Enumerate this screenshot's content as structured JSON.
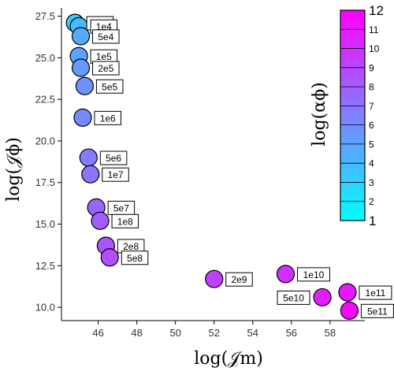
{
  "chart_data": {
    "type": "scatter",
    "xlabel": "log(𝒥m)",
    "ylabel": "log(𝒥ϕ)",
    "xlim": [
      44.1,
      59.8
    ],
    "ylim": [
      9.2,
      28.0
    ],
    "x_ticks": [
      "46",
      "48",
      "50",
      "52",
      "54",
      "56",
      "58"
    ],
    "x_tick_values": [
      46,
      48,
      50,
      52,
      54,
      56,
      58
    ],
    "y_ticks": [
      "10.0",
      "12.5",
      "15.0",
      "17.5",
      "20.0",
      "22.5",
      "25.0",
      "27.5"
    ],
    "y_tick_values": [
      10.0,
      12.5,
      15.0,
      17.5,
      20.0,
      22.5,
      25.0,
      27.5
    ],
    "colorbar": {
      "label": "log(αϕ)",
      "range": [
        1,
        12
      ],
      "ticks": [
        "1",
        "2",
        "3",
        "4",
        "5",
        "6",
        "7",
        "8",
        "9",
        "10",
        "11",
        "12"
      ],
      "tick_values": [
        1,
        2,
        3,
        4,
        5,
        6,
        7,
        8,
        9,
        10,
        11,
        12
      ],
      "colormap": [
        "#00ffff",
        "#ff00ff"
      ]
    },
    "points": [
      {
        "label": "1e3",
        "x": 44.8,
        "y": 27.1,
        "c": 3.0,
        "label_side": "right"
      },
      {
        "label": "1e4",
        "x": 45.0,
        "y": 26.9,
        "c": 4.0,
        "label_side": "right"
      },
      {
        "label": "5e4",
        "x": 45.1,
        "y": 26.3,
        "c": 4.7,
        "label_side": "right"
      },
      {
        "label": "1e5",
        "x": 45.0,
        "y": 25.1,
        "c": 5.0,
        "label_side": "right"
      },
      {
        "label": "2e5",
        "x": 45.1,
        "y": 24.4,
        "c": 5.3,
        "label_side": "right"
      },
      {
        "label": "5e5",
        "x": 45.3,
        "y": 23.3,
        "c": 5.7,
        "label_side": "right"
      },
      {
        "label": "1e6",
        "x": 45.2,
        "y": 21.4,
        "c": 6.0,
        "label_side": "right"
      },
      {
        "label": "5e6",
        "x": 45.5,
        "y": 19.0,
        "c": 6.7,
        "label_side": "right"
      },
      {
        "label": "1e7",
        "x": 45.6,
        "y": 18.0,
        "c": 7.0,
        "label_side": "right"
      },
      {
        "label": "5e7",
        "x": 45.9,
        "y": 16.0,
        "c": 7.7,
        "label_side": "right"
      },
      {
        "label": "1e8",
        "x": 46.1,
        "y": 15.2,
        "c": 8.0,
        "label_side": "right"
      },
      {
        "label": "2e8",
        "x": 46.4,
        "y": 13.7,
        "c": 8.3,
        "label_side": "right"
      },
      {
        "label": "5e8",
        "x": 46.6,
        "y": 13.0,
        "c": 8.7,
        "label_side": "right"
      },
      {
        "label": "2e9",
        "x": 52.0,
        "y": 11.7,
        "c": 9.3,
        "label_side": "right"
      },
      {
        "label": "1e10",
        "x": 55.7,
        "y": 12.0,
        "c": 10.0,
        "label_side": "right"
      },
      {
        "label": "5e10",
        "x": 57.6,
        "y": 10.6,
        "c": 10.7,
        "label_side": "left"
      },
      {
        "label": "1e11",
        "x": 58.9,
        "y": 10.9,
        "c": 11.0,
        "label_side": "right"
      },
      {
        "label": "5e11",
        "x": 59.0,
        "y": 9.8,
        "c": 11.7,
        "label_side": "right"
      }
    ]
  }
}
